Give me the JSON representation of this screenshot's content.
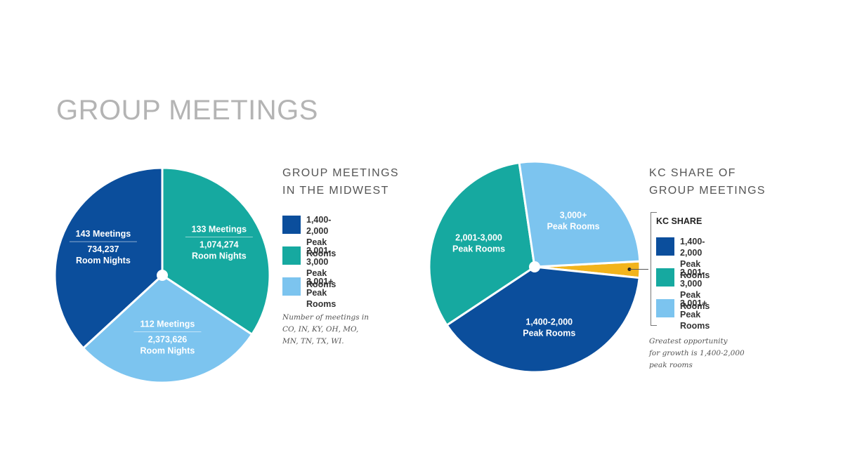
{
  "page_title": "GROUP MEETINGS",
  "colors": {
    "band_1400_2000": "#0b4e9c",
    "band_2001_3000": "#16a9a0",
    "band_3001_plus": "#7cc4ef",
    "kc_share": "#f2b41c"
  },
  "chart_data": [
    {
      "type": "pie",
      "title_lines": [
        "GROUP MEETINGS",
        "IN THE MIDWEST"
      ],
      "unit": "meetings",
      "slices": [
        {
          "category": "1,400-2,000 Peak Rooms",
          "meetings_label": "143 Meetings",
          "meetings": 143,
          "room_nights": "734,237",
          "room_nights_label": "Room Nights",
          "color": "#0b4e9c"
        },
        {
          "category": "2,001-3,000 Peak Rooms",
          "meetings_label": "133 Meetings",
          "meetings": 133,
          "room_nights": "1,074,274",
          "room_nights_label": "Room Nights",
          "color": "#16a9a0"
        },
        {
          "category": "3,001+ Peak Rooms",
          "meetings_label": "112 Meetings",
          "meetings": 112,
          "room_nights": "2,373,626",
          "room_nights_label": "Room Nights",
          "color": "#7cc4ef"
        }
      ],
      "legend": [
        {
          "line1": "1,400-2,000",
          "line2": "Peak Rooms",
          "color": "#0b4e9c"
        },
        {
          "line1": "2,001-3,000",
          "line2": "Peak Rooms",
          "color": "#16a9a0"
        },
        {
          "line1": "3,001+",
          "line2": "Peak Rooms",
          "color": "#7cc4ef"
        }
      ],
      "note_lines": [
        "Number of meetings in",
        "CO, IN, KY, OH, MO,",
        "MN, TN, TX, WI."
      ]
    },
    {
      "type": "pie",
      "title_lines": [
        "KC SHARE OF",
        "GROUP MEETINGS"
      ],
      "unit": "percent of circle",
      "slices": [
        {
          "category": "KC Share",
          "value": 2.5,
          "color": "#f2b41c"
        },
        {
          "category": "1,400-2,000 Peak Rooms",
          "line1": "1,400-2,000",
          "line2": "Peak Rooms",
          "value": 39,
          "color": "#0b4e9c"
        },
        {
          "category": "2,001-3,000 Peak Rooms",
          "line1": "2,001-3,000",
          "line2": "Peak Rooms",
          "value": 32,
          "color": "#16a9a0"
        },
        {
          "category": "3,000+ Peak Rooms",
          "line1": "3,000+",
          "line2": "Peak Rooms",
          "value": 26.5,
          "color": "#7cc4ef"
        }
      ],
      "legend_heading": "KC SHARE",
      "legend": [
        {
          "line1": "1,400-2,000",
          "line2": "Peak Rooms",
          "color": "#0b4e9c"
        },
        {
          "line1": "2,001-3,000",
          "line2": "Peak Rooms",
          "color": "#16a9a0"
        },
        {
          "line1": "3,001+",
          "line2": "Peak Rooms",
          "color": "#7cc4ef"
        }
      ],
      "note_lines": [
        "Greatest opportunity",
        "for growth is 1,400-2,000",
        "peak rooms"
      ]
    }
  ]
}
